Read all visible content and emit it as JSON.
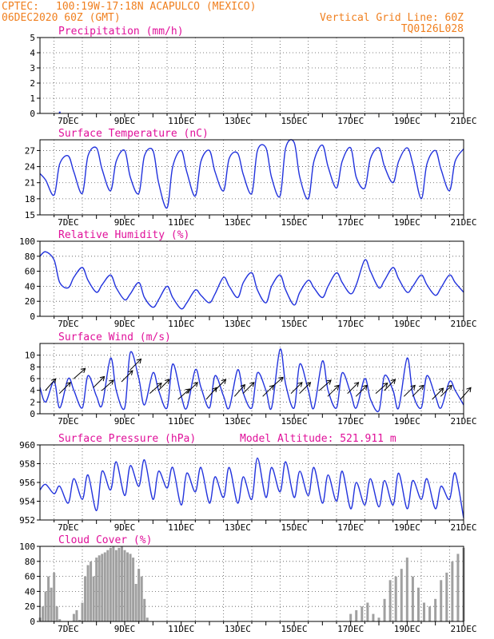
{
  "header": {
    "source": "CPTEC:",
    "location": "100:19W-17:18N  ACAPULCO (MEXICO)",
    "run": "06DEC2020 60Z (GMT)",
    "grid_note": "Vertical Grid Line: 60Z",
    "code": "TQ0126L028"
  },
  "x_labels": [
    "7DEC",
    "9DEC",
    "11DEC",
    "13DEC",
    "15DEC",
    "17DEC",
    "19DEC",
    "21DEC"
  ],
  "colors": {
    "line": "#2233dd",
    "arrow": "#000000",
    "bar": "#a0a0a0",
    "title": "#e0109a",
    "header": "#f08020"
  },
  "chart_data": [
    {
      "type": "bar",
      "title": "Precipitation (mm/h)",
      "ylim": [
        0,
        5
      ],
      "yticks": [
        0,
        1,
        2,
        3,
        4,
        5
      ],
      "x_days": [
        6.7,
        9.8,
        11.3,
        17.9,
        19.2
      ],
      "values": [
        0.12,
        0.02,
        0.02,
        0.03,
        0.02
      ]
    },
    {
      "type": "line",
      "title": "Surface Temperature (nC)",
      "ylim": [
        15,
        29
      ],
      "yticks": [
        15,
        18,
        21,
        24,
        27
      ],
      "x_days": [
        6.0,
        6.2,
        6.5,
        6.7,
        7.0,
        7.2,
        7.5,
        7.7,
        8.0,
        8.2,
        8.5,
        8.7,
        9.0,
        9.2,
        9.5,
        9.7,
        10.0,
        10.2,
        10.5,
        10.7,
        11.0,
        11.2,
        11.5,
        11.7,
        12.0,
        12.2,
        12.5,
        12.7,
        13.0,
        13.2,
        13.5,
        13.7,
        14.0,
        14.2,
        14.5,
        14.7,
        15.0,
        15.2,
        15.5,
        15.7,
        16.0,
        16.2,
        16.5,
        16.7,
        17.0,
        17.2,
        17.5,
        17.7,
        18.0,
        18.2,
        18.5,
        18.7,
        19.0,
        19.2,
        19.5,
        19.7,
        20.0,
        20.2,
        20.5,
        20.7,
        21.0
      ],
      "values": [
        22.7,
        21.5,
        18.7,
        24.5,
        26.0,
        23.0,
        19.0,
        26.0,
        27.5,
        23.5,
        19.5,
        25.0,
        27.0,
        22.0,
        19.0,
        26.0,
        27.0,
        21.0,
        16.3,
        24.0,
        27.0,
        23.0,
        18.5,
        25.0,
        27.0,
        23.0,
        19.5,
        25.5,
        26.5,
        22.5,
        19.0,
        27.0,
        27.5,
        22.0,
        18.5,
        27.5,
        28.5,
        22.0,
        18.0,
        25.0,
        28.0,
        24.0,
        20.0,
        25.0,
        27.5,
        22.0,
        20.0,
        25.5,
        27.5,
        24.0,
        21.0,
        25.0,
        27.5,
        24.5,
        18.0,
        24.5,
        27.0,
        23.5,
        19.5,
        25.0,
        27.3
      ]
    },
    {
      "type": "line",
      "title": "Relative Humidity (%)",
      "ylim": [
        0,
        100
      ],
      "yticks": [
        0,
        20,
        40,
        60,
        80,
        100
      ],
      "x_days": [
        6.0,
        6.2,
        6.5,
        6.7,
        7.0,
        7.2,
        7.5,
        7.7,
        8.0,
        8.2,
        8.5,
        8.7,
        9.0,
        9.2,
        9.5,
        9.7,
        10.0,
        10.2,
        10.5,
        10.7,
        11.0,
        11.2,
        11.5,
        11.7,
        12.0,
        12.2,
        12.5,
        12.7,
        13.0,
        13.2,
        13.5,
        13.7,
        14.0,
        14.2,
        14.5,
        14.7,
        15.0,
        15.2,
        15.5,
        15.7,
        16.0,
        16.2,
        16.5,
        16.7,
        17.0,
        17.2,
        17.5,
        17.7,
        18.0,
        18.2,
        18.5,
        18.7,
        19.0,
        19.2,
        19.5,
        19.7,
        20.0,
        20.2,
        20.5,
        20.7,
        21.0
      ],
      "values": [
        80,
        86,
        75,
        45,
        38,
        52,
        65,
        48,
        32,
        42,
        55,
        38,
        22,
        30,
        45,
        25,
        12,
        22,
        40,
        25,
        10,
        18,
        35,
        28,
        18,
        30,
        52,
        40,
        25,
        45,
        58,
        35,
        18,
        40,
        55,
        35,
        15,
        32,
        48,
        38,
        25,
        40,
        58,
        45,
        30,
        42,
        75,
        60,
        38,
        48,
        65,
        50,
        32,
        40,
        55,
        42,
        28,
        38,
        55,
        45,
        32
      ]
    },
    {
      "type": "line",
      "title": "Surface Wind (m/s)",
      "ylim": [
        0,
        12
      ],
      "yticks": [
        0,
        2,
        4,
        6,
        8,
        10
      ],
      "x_days": [
        6.0,
        6.2,
        6.5,
        6.7,
        7.0,
        7.2,
        7.5,
        7.7,
        8.0,
        8.2,
        8.5,
        8.7,
        9.0,
        9.2,
        9.5,
        9.7,
        10.0,
        10.2,
        10.5,
        10.7,
        11.0,
        11.2,
        11.5,
        11.7,
        12.0,
        12.2,
        12.5,
        12.7,
        13.0,
        13.2,
        13.5,
        13.7,
        14.0,
        14.2,
        14.5,
        14.7,
        15.0,
        15.2,
        15.5,
        15.7,
        16.0,
        16.2,
        16.5,
        16.7,
        17.0,
        17.2,
        17.5,
        17.7,
        18.0,
        18.2,
        18.5,
        18.7,
        19.0,
        19.2,
        19.5,
        19.7,
        20.0,
        20.2,
        20.5,
        20.7,
        21.0
      ],
      "values": [
        4.5,
        2.0,
        5.5,
        1.0,
        6.0,
        4.0,
        1.0,
        6.5,
        3.0,
        1.5,
        9.5,
        4.0,
        1.0,
        10.5,
        6.0,
        1.5,
        7.0,
        4.0,
        1.0,
        8.5,
        3.0,
        1.0,
        7.5,
        4.5,
        1.0,
        6.5,
        3.0,
        1.0,
        7.5,
        3.5,
        1.0,
        7.0,
        4.0,
        1.0,
        11.0,
        5.0,
        1.0,
        8.5,
        4.0,
        1.0,
        9.0,
        4.0,
        1.0,
        7.0,
        3.5,
        1.0,
        6.0,
        2.5,
        0.5,
        6.5,
        4.0,
        1.0,
        9.5,
        3.5,
        1.0,
        6.5,
        3.0,
        1.0,
        5.5,
        4.0,
        1.5
      ],
      "arrow_days": [
        6.3,
        6.8,
        7.3,
        8.0,
        8.3,
        9.0,
        9.3,
        10.0,
        10.3,
        11.0,
        11.3,
        12.0,
        12.3,
        13.0,
        13.3,
        14.0,
        14.3,
        15.0,
        15.3,
        16.0,
        16.3,
        17.0,
        17.3,
        18.0,
        18.3,
        19.0,
        19.3,
        20.0,
        20.3,
        21.0
      ],
      "arrow_speed": [
        4.5,
        4.0,
        6.5,
        5.0,
        4.5,
        6.0,
        8.0,
        4.0,
        4.5,
        3.0,
        4.0,
        3.0,
        4.5,
        3.5,
        4.0,
        3.5,
        5.0,
        4.0,
        4.0,
        4.5,
        3.5,
        4.0,
        3.5,
        4.0,
        4.5,
        3.5,
        3.5,
        3.0,
        3.5,
        3.0
      ],
      "arrow_dir_deg": [
        50,
        45,
        40,
        45,
        40,
        45,
        45,
        40,
        45,
        40,
        45,
        50,
        45,
        50,
        45,
        45,
        40,
        45,
        45,
        40,
        45,
        45,
        45,
        40,
        45,
        45,
        45,
        45,
        45,
        50
      ]
    },
    {
      "type": "line",
      "title": "Surface Pressure (hPa)",
      "subtitle": "Model Altitude: 521.911 m",
      "ylim": [
        952,
        960
      ],
      "yticks": [
        952,
        954,
        956,
        958,
        960
      ],
      "x_days": [
        6.0,
        6.2,
        6.5,
        6.7,
        7.0,
        7.2,
        7.5,
        7.7,
        8.0,
        8.2,
        8.5,
        8.7,
        9.0,
        9.2,
        9.5,
        9.7,
        10.0,
        10.2,
        10.5,
        10.7,
        11.0,
        11.2,
        11.5,
        11.7,
        12.0,
        12.2,
        12.5,
        12.7,
        13.0,
        13.2,
        13.5,
        13.7,
        14.0,
        14.2,
        14.5,
        14.7,
        15.0,
        15.2,
        15.5,
        15.7,
        16.0,
        16.2,
        16.5,
        16.7,
        17.0,
        17.2,
        17.5,
        17.7,
        18.0,
        18.2,
        18.5,
        18.7,
        19.0,
        19.2,
        19.5,
        19.7,
        20.0,
        20.2,
        20.5,
        20.7,
        21.0
      ],
      "values": [
        955.2,
        955.8,
        954.8,
        955.6,
        953.8,
        956.4,
        954.2,
        956.8,
        953.0,
        957.2,
        955.2,
        958.2,
        954.6,
        957.8,
        955.6,
        958.4,
        954.2,
        957.2,
        955.4,
        957.6,
        953.6,
        957.0,
        955.0,
        957.6,
        953.8,
        956.6,
        954.4,
        957.6,
        953.8,
        956.6,
        954.2,
        958.6,
        954.4,
        957.6,
        955.0,
        958.2,
        954.4,
        957.2,
        954.6,
        957.6,
        953.8,
        956.8,
        954.0,
        957.2,
        953.2,
        956.0,
        953.6,
        956.4,
        953.4,
        956.2,
        953.6,
        957.0,
        953.2,
        956.2,
        954.2,
        956.4,
        953.2,
        955.6,
        954.2,
        957.0,
        952.2
      ]
    },
    {
      "type": "area",
      "title": "Cloud Cover (%)",
      "ylim": [
        0,
        100
      ],
      "yticks": [
        0,
        20,
        40,
        60,
        80,
        100
      ],
      "x_days": [
        6.0,
        6.1,
        6.2,
        6.3,
        6.4,
        6.5,
        6.6,
        6.7,
        6.8,
        6.9,
        7.0,
        7.1,
        7.2,
        7.3,
        7.4,
        7.5,
        7.6,
        7.7,
        7.8,
        7.9,
        8.0,
        8.1,
        8.2,
        8.3,
        8.4,
        8.5,
        8.6,
        8.7,
        8.8,
        8.9,
        9.0,
        9.1,
        9.2,
        9.3,
        9.4,
        9.5,
        9.6,
        9.7,
        9.8,
        9.9,
        10.0,
        17.0,
        17.2,
        17.4,
        17.6,
        17.8,
        18.0,
        18.2,
        18.4,
        18.6,
        18.8,
        19.0,
        19.2,
        19.4,
        19.6,
        19.8,
        20.0,
        20.2,
        20.4,
        20.6,
        20.8,
        21.0
      ],
      "values": [
        5,
        20,
        40,
        60,
        45,
        65,
        20,
        3,
        0,
        0,
        0,
        0,
        10,
        15,
        2,
        25,
        60,
        75,
        80,
        60,
        85,
        88,
        90,
        92,
        95,
        98,
        100,
        95,
        98,
        100,
        95,
        92,
        90,
        85,
        50,
        70,
        60,
        30,
        5,
        0,
        0,
        10,
        15,
        20,
        25,
        10,
        5,
        30,
        55,
        60,
        70,
        85,
        60,
        45,
        25,
        20,
        30,
        55,
        65,
        80,
        90,
        98
      ]
    }
  ]
}
